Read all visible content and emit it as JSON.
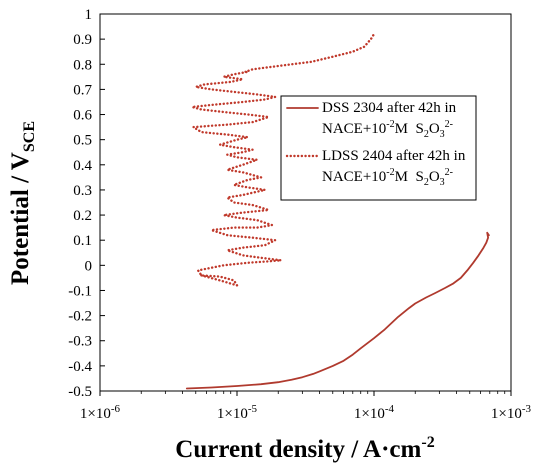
{
  "chart_data": {
    "type": "line",
    "xlabel": "Current density / A·cm",
    "xlabel_sup": "-2",
    "ylabel": "Potential / V",
    "ylabel_sub": "SCE",
    "x_scale": "log",
    "xlim": [
      1e-06,
      0.001
    ],
    "ylim": [
      -0.5,
      1.0
    ],
    "x_ticks": [
      {
        "value": 1e-06,
        "label": "1×10-6"
      },
      {
        "value": 1e-05,
        "label": "1×10-5"
      },
      {
        "value": 0.0001,
        "label": "1×10-4"
      },
      {
        "value": 0.001,
        "label": "1×10-3"
      }
    ],
    "y_ticks": [
      {
        "value": 1.0,
        "label": "1"
      },
      {
        "value": 0.9,
        "label": "0.9"
      },
      {
        "value": 0.8,
        "label": "0.8"
      },
      {
        "value": 0.7,
        "label": "0.7"
      },
      {
        "value": 0.6,
        "label": "0.6"
      },
      {
        "value": 0.5,
        "label": "0.5"
      },
      {
        "value": 0.4,
        "label": "0.4"
      },
      {
        "value": 0.3,
        "label": "0.3"
      },
      {
        "value": 0.2,
        "label": "0.2"
      },
      {
        "value": 0.1,
        "label": "0.1"
      },
      {
        "value": 0.0,
        "label": "0"
      },
      {
        "value": -0.1,
        "label": "-0.1"
      },
      {
        "value": -0.2,
        "label": "-0.2"
      },
      {
        "value": -0.3,
        "label": "-0.3"
      },
      {
        "value": -0.4,
        "label": "-0.4"
      },
      {
        "value": -0.5,
        "label": "-0.5"
      }
    ],
    "grid": false,
    "legend_position": "top-right",
    "series": [
      {
        "name": "DSS 2304 after 42h in NACE+10-2M S2O32-",
        "legend_lines": [
          "DSS 2304 after 42h in",
          "NACE+10-2M  S2O32-"
        ],
        "style": "solid",
        "color": "#b03a2e",
        "x": [
          4.3e-06,
          6.5e-06,
          1e-05,
          1.5e-05,
          2e-05,
          2.5e-05,
          3e-05,
          3.6e-05,
          4e-05,
          5e-05,
          6e-05,
          7e-05,
          8e-05,
          0.0001,
          0.00012,
          0.00015,
          0.00018,
          0.0002,
          0.00024,
          0.00028,
          0.00033,
          0.00038,
          0.00043,
          0.00048,
          0.00053,
          0.00058,
          0.00063,
          0.00066,
          0.00068,
          0.00067,
          0.00069
        ],
        "y": [
          -0.49,
          -0.486,
          -0.48,
          -0.473,
          -0.465,
          -0.455,
          -0.445,
          -0.432,
          -0.422,
          -0.4,
          -0.38,
          -0.355,
          -0.33,
          -0.29,
          -0.255,
          -0.205,
          -0.17,
          -0.152,
          -0.128,
          -0.11,
          -0.09,
          -0.072,
          -0.05,
          -0.02,
          0.01,
          0.04,
          0.07,
          0.09,
          0.11,
          0.13,
          0.12
        ]
      },
      {
        "name": "LDSS 2404 after 42h in NACE+10-2M S2O32-",
        "legend_lines": [
          "LDSS 2404 after 42h in",
          "NACE+10-2M  S2O32-"
        ],
        "style": "dotted",
        "color": "#c0392b",
        "x": [
          5.5e-06,
          7.5e-06,
          1e-05,
          9.5e-06,
          7.5e-06,
          5.5e-06,
          5.2e-06,
          8e-06,
          1.2e-05,
          1.6e-05,
          2.1e-05,
          1.5e-05,
          1.1e-05,
          8.5e-06,
          1.1e-05,
          1.6e-05,
          1.9e-05,
          1.3e-05,
          8.5e-06,
          6.5e-06,
          9.5e-06,
          1.4e-05,
          1.8e-05,
          1.4e-05,
          1e-05,
          8e-06,
          1.1e-05,
          1.7e-05,
          1.3e-05,
          9.5e-06,
          8.5e-06,
          1.1e-05,
          1.6e-05,
          1.2e-05,
          9.5e-06,
          1.2e-05,
          1.5e-05,
          1.1e-05,
          8.5e-06,
          1.1e-05,
          1.4e-05,
          1e-05,
          8.5e-06,
          1.1e-05,
          1.3e-05,
          9.5e-06,
          7.5e-06,
          1e-05,
          1.2e-05,
          8.5e-06,
          5.5e-06,
          4.8e-06,
          8.5e-06,
          1.3e-05,
          1.7e-05,
          1.2e-05,
          8e-06,
          5.5e-06,
          4.7e-06,
          7e-06,
          1.1e-05,
          1.6e-05,
          1.9e-05,
          1.4e-05,
          9.5e-06,
          6.5e-06,
          5e-06,
          5.8e-06,
          9e-06,
          1.1e-05,
          8e-06,
          9.5e-06,
          1.2e-05,
          1.15e-05,
          1.3e-05,
          1.8e-05,
          2.5e-05,
          3.5e-05,
          5e-05,
          7e-05,
          8.5e-05,
          9.5e-05,
          0.0001
        ],
        "y": [
          -0.04,
          -0.06,
          -0.08,
          -0.06,
          -0.045,
          -0.04,
          -0.02,
          0.0,
          0.01,
          0.015,
          0.02,
          0.03,
          0.04,
          0.06,
          0.07,
          0.08,
          0.1,
          0.11,
          0.12,
          0.14,
          0.15,
          0.15,
          0.16,
          0.18,
          0.19,
          0.2,
          0.21,
          0.22,
          0.24,
          0.25,
          0.27,
          0.28,
          0.3,
          0.31,
          0.32,
          0.34,
          0.35,
          0.37,
          0.38,
          0.4,
          0.42,
          0.43,
          0.44,
          0.45,
          0.46,
          0.47,
          0.48,
          0.5,
          0.51,
          0.52,
          0.53,
          0.55,
          0.56,
          0.57,
          0.59,
          0.6,
          0.61,
          0.62,
          0.63,
          0.64,
          0.65,
          0.66,
          0.67,
          0.68,
          0.69,
          0.7,
          0.71,
          0.72,
          0.73,
          0.74,
          0.75,
          0.76,
          0.77,
          0.77,
          0.78,
          0.79,
          0.8,
          0.81,
          0.83,
          0.85,
          0.87,
          0.9,
          0.92
        ]
      }
    ]
  }
}
